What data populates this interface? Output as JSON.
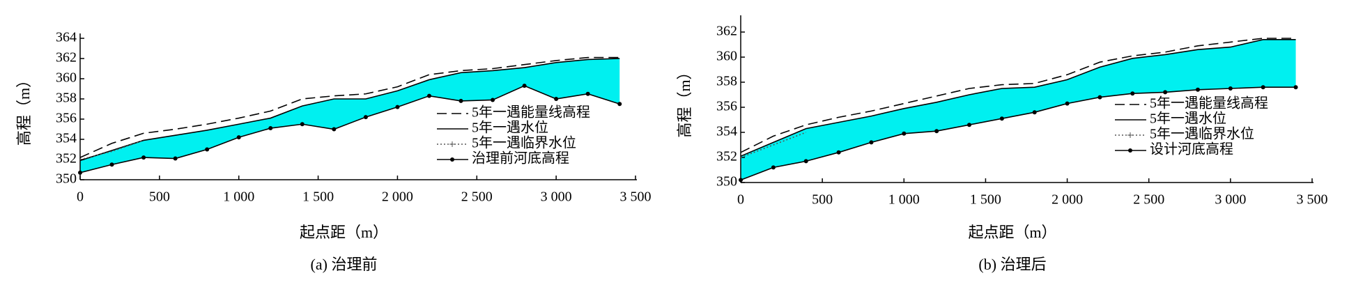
{
  "chart_data": [
    {
      "type": "line",
      "title": "(a) 治理前",
      "x_label": "起点距（m）",
      "y_label": "高程（m）",
      "xlim": [
        0,
        3500
      ],
      "ylim": [
        350,
        364
      ],
      "xticks": [
        0,
        500,
        {
          "value": 1000,
          "label": "1 000"
        },
        {
          "value": 1500,
          "label": "1 500"
        },
        {
          "value": 2000,
          "label": "2 000"
        },
        {
          "value": 2500,
          "label": "2 500"
        },
        {
          "value": 3000,
          "label": "3 000"
        },
        {
          "value": 3500,
          "label": "3 500"
        }
      ],
      "yticks": [
        350,
        352,
        354,
        356,
        358,
        360,
        362,
        364
      ],
      "legend": "lower right",
      "fill_color": "#00f0f0",
      "x": [
        0,
        200,
        400,
        600,
        800,
        1000,
        1200,
        1400,
        1600,
        1800,
        2000,
        2200,
        2400,
        2600,
        2800,
        3000,
        3200,
        3400
      ],
      "series": [
        {
          "name": "5年一遇能量线高程",
          "color": "#000000",
          "style": "dashed",
          "values": [
            352.2,
            353.6,
            354.6,
            355.0,
            355.5,
            356.1,
            356.8,
            358.0,
            358.3,
            358.5,
            359.2,
            360.4,
            360.8,
            361.0,
            361.4,
            361.8,
            362.1,
            362.1
          ]
        },
        {
          "name": "5年一遇水位",
          "color": "#000000",
          "style": "solid",
          "values": [
            351.9,
            352.9,
            353.9,
            354.4,
            354.9,
            355.5,
            356.1,
            357.3,
            358.0,
            358.0,
            358.8,
            359.9,
            360.6,
            360.8,
            361.1,
            361.6,
            361.9,
            362.0
          ]
        },
        {
          "name": "5年一遇临界水位",
          "color": "#555555",
          "style": "dotted",
          "values": [
            352.0,
            352.8,
            353.9,
            null,
            null,
            null,
            null,
            null,
            null,
            null,
            null,
            null,
            null,
            null,
            null,
            null,
            null,
            null
          ]
        },
        {
          "name": "治理前河底高程",
          "color": "#000000",
          "style": "marker",
          "values": [
            350.7,
            351.5,
            352.2,
            352.1,
            353.0,
            354.2,
            355.1,
            355.5,
            355.0,
            356.2,
            357.2,
            358.3,
            357.8,
            357.9,
            359.3,
            358.0,
            358.5,
            357.5
          ]
        }
      ]
    },
    {
      "type": "line",
      "title": "(b) 治理后",
      "x_label": "起点距（m）",
      "y_label": "高程（m）",
      "xlim": [
        0,
        3500
      ],
      "ylim": [
        350,
        363
      ],
      "xticks": [
        0,
        500,
        {
          "value": 1000,
          "label": "1 000"
        },
        {
          "value": 1500,
          "label": "1 500"
        },
        {
          "value": 2000,
          "label": "2 000"
        },
        {
          "value": 2500,
          "label": "2 500"
        },
        {
          "value": 3000,
          "label": "3 000"
        },
        {
          "value": 3500,
          "label": "3 500"
        }
      ],
      "yticks": [
        350,
        352,
        354,
        356,
        358,
        360,
        362
      ],
      "legend": "lower right",
      "fill_color": "#00f0f0",
      "x": [
        0,
        200,
        400,
        600,
        800,
        1000,
        1200,
        1400,
        1600,
        1800,
        2000,
        2200,
        2400,
        2600,
        2800,
        3000,
        3200,
        3400
      ],
      "series": [
        {
          "name": "5年一遇能量线高程",
          "color": "#000000",
          "style": "dashed",
          "values": [
            352.4,
            353.7,
            354.6,
            355.2,
            355.7,
            356.3,
            356.9,
            357.5,
            357.8,
            357.9,
            358.6,
            359.6,
            360.1,
            360.4,
            360.9,
            361.2,
            361.5,
            361.5
          ]
        },
        {
          "name": "5年一遇水位",
          "color": "#000000",
          "style": "solid",
          "values": [
            352.1,
            353.2,
            354.3,
            354.8,
            355.3,
            355.9,
            356.4,
            357.0,
            357.5,
            357.6,
            358.2,
            359.2,
            359.9,
            360.2,
            360.6,
            360.8,
            361.4,
            361.4
          ]
        },
        {
          "name": "5年一遇临界水位",
          "color": "#555555",
          "style": "dotted",
          "values": [
            352.0,
            353.0,
            354.0,
            null,
            null,
            null,
            null,
            null,
            null,
            null,
            null,
            null,
            null,
            null,
            null,
            null,
            null,
            null
          ]
        },
        {
          "name": "设计河底高程",
          "color": "#000000",
          "style": "marker",
          "values": [
            350.2,
            351.2,
            351.7,
            352.4,
            353.2,
            353.9,
            354.1,
            354.6,
            355.1,
            355.6,
            356.3,
            356.8,
            357.1,
            357.2,
            357.4,
            357.5,
            357.6,
            357.6
          ]
        }
      ]
    }
  ]
}
